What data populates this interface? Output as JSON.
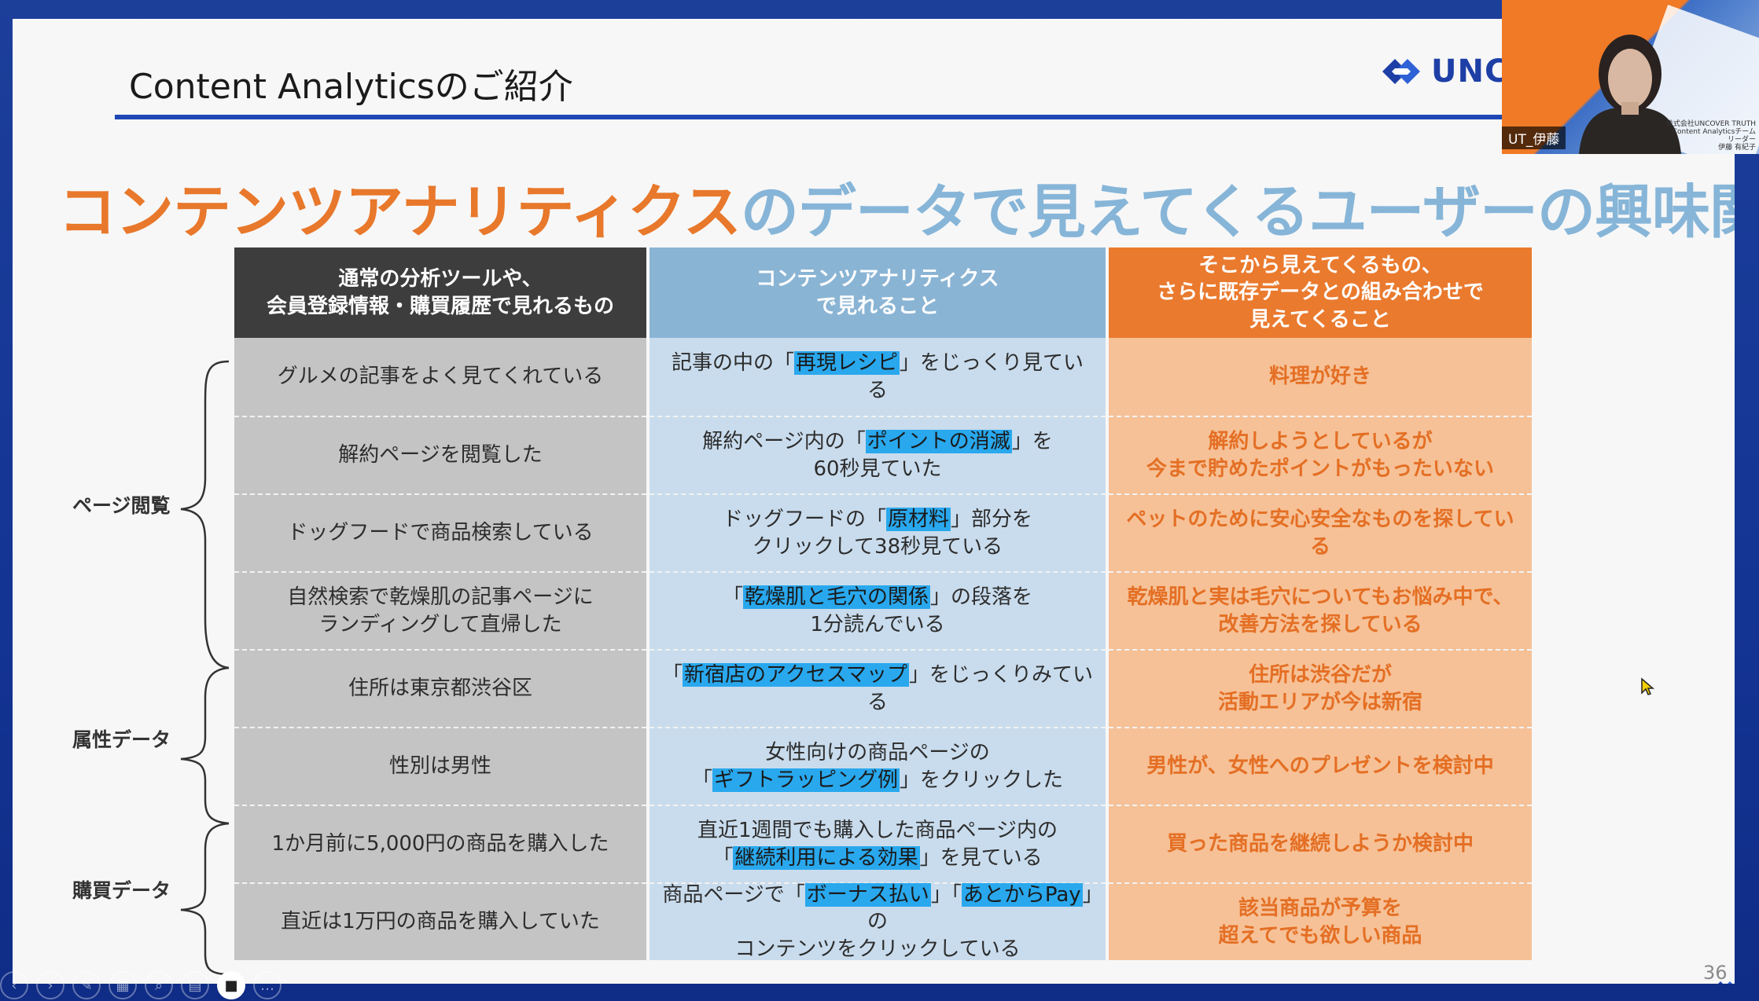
{
  "slide": {
    "title": "Content Analyticsのご紹介",
    "logo_text": "UNC",
    "headline": {
      "part1": "コンテンツアナリティクス",
      "part2": "のデータ",
      "part3": "で見えてくるユーザーの興味関心"
    },
    "page_number": "36"
  },
  "table": {
    "headers": [
      "通常の分析ツールや、\n会員登録情報・購買履歴で見れるもの",
      "コンテンツアナリティクス\nで見れること",
      "そこから見えてくるもの、\nさらに既存データとの組み合わせで\n見えてくること"
    ],
    "rows": [
      {
        "c1": "グルメの記事をよく見てくれている",
        "c2": {
          "pre": "記事の中の「",
          "hl": "再現レシピ",
          "post": "」をじっくり見ている"
        },
        "c3": "料理が好き"
      },
      {
        "c1": "解約ページを閲覧した",
        "c2": {
          "pre": "解約ページ内の「",
          "hl": "ポイントの消滅",
          "post": "」を\n60秒見ていた"
        },
        "c3": "解約しようとしているが\n今まで貯めたポイントがもったいない"
      },
      {
        "c1": "ドッグフードで商品検索している",
        "c2": {
          "pre": "ドッグフードの「",
          "hl": "原材料",
          "post": "」部分を\nクリックして38秒見ている"
        },
        "c3": "ペットのために安心安全なものを探している"
      },
      {
        "c1": "自然検索で乾燥肌の記事ページに\nランディングして直帰した",
        "c2": {
          "pre": "「",
          "hl": "乾燥肌と毛穴の関係",
          "post": "」の段落を\n1分読んでいる"
        },
        "c3": "乾燥肌と実は毛穴についてもお悩み中で、\n改善方法を探している"
      },
      {
        "c1": "住所は東京都渋谷区",
        "c2": {
          "pre": "「",
          "hl": "新宿店のアクセスマップ",
          "post": "」をじっくりみている"
        },
        "c3": "住所は渋谷だが\n活動エリアが今は新宿"
      },
      {
        "c1": "性別は男性",
        "c2": {
          "pre": "女性向けの商品ページの\n「",
          "hl": "ギフトラッピング例",
          "post": "」をクリックした"
        },
        "c3": "男性が、女性へのプレゼントを検討中"
      },
      {
        "c1": "1か月前に5,000円の商品を購入した",
        "c2": {
          "pre": "直近1週間でも購入した商品ページ内の\n「",
          "hl": "継続利用による効果",
          "post": "」を見ている"
        },
        "c3": "買った商品を継続しようか検討中"
      },
      {
        "c1": "直近は1万円の商品を購入していた",
        "c2": {
          "pre": "商品ページで「",
          "hl": "ボーナス払い",
          "mid": "」「",
          "hl2": "あとからPay",
          "post": "」の\nコンテンツをクリックしている"
        },
        "c3": "該当商品が予算を\n超えてでも欲しい商品"
      }
    ]
  },
  "groups": [
    "ページ閲覧",
    "属性データ",
    "購買データ"
  ],
  "video": {
    "name": "UT_伊藤",
    "note_line1": "株式会社UNCOVER TRUTH",
    "note_line2": "Content Analyticsチーム",
    "note_line3": "リーダー",
    "note_line4": "伊藤 有紀子"
  },
  "colors": {
    "accent_blue": "#1d47b5",
    "header_orange": "#ea7a2e",
    "header_blue": "#8ab4d4",
    "highlight": "#29a8ee"
  }
}
